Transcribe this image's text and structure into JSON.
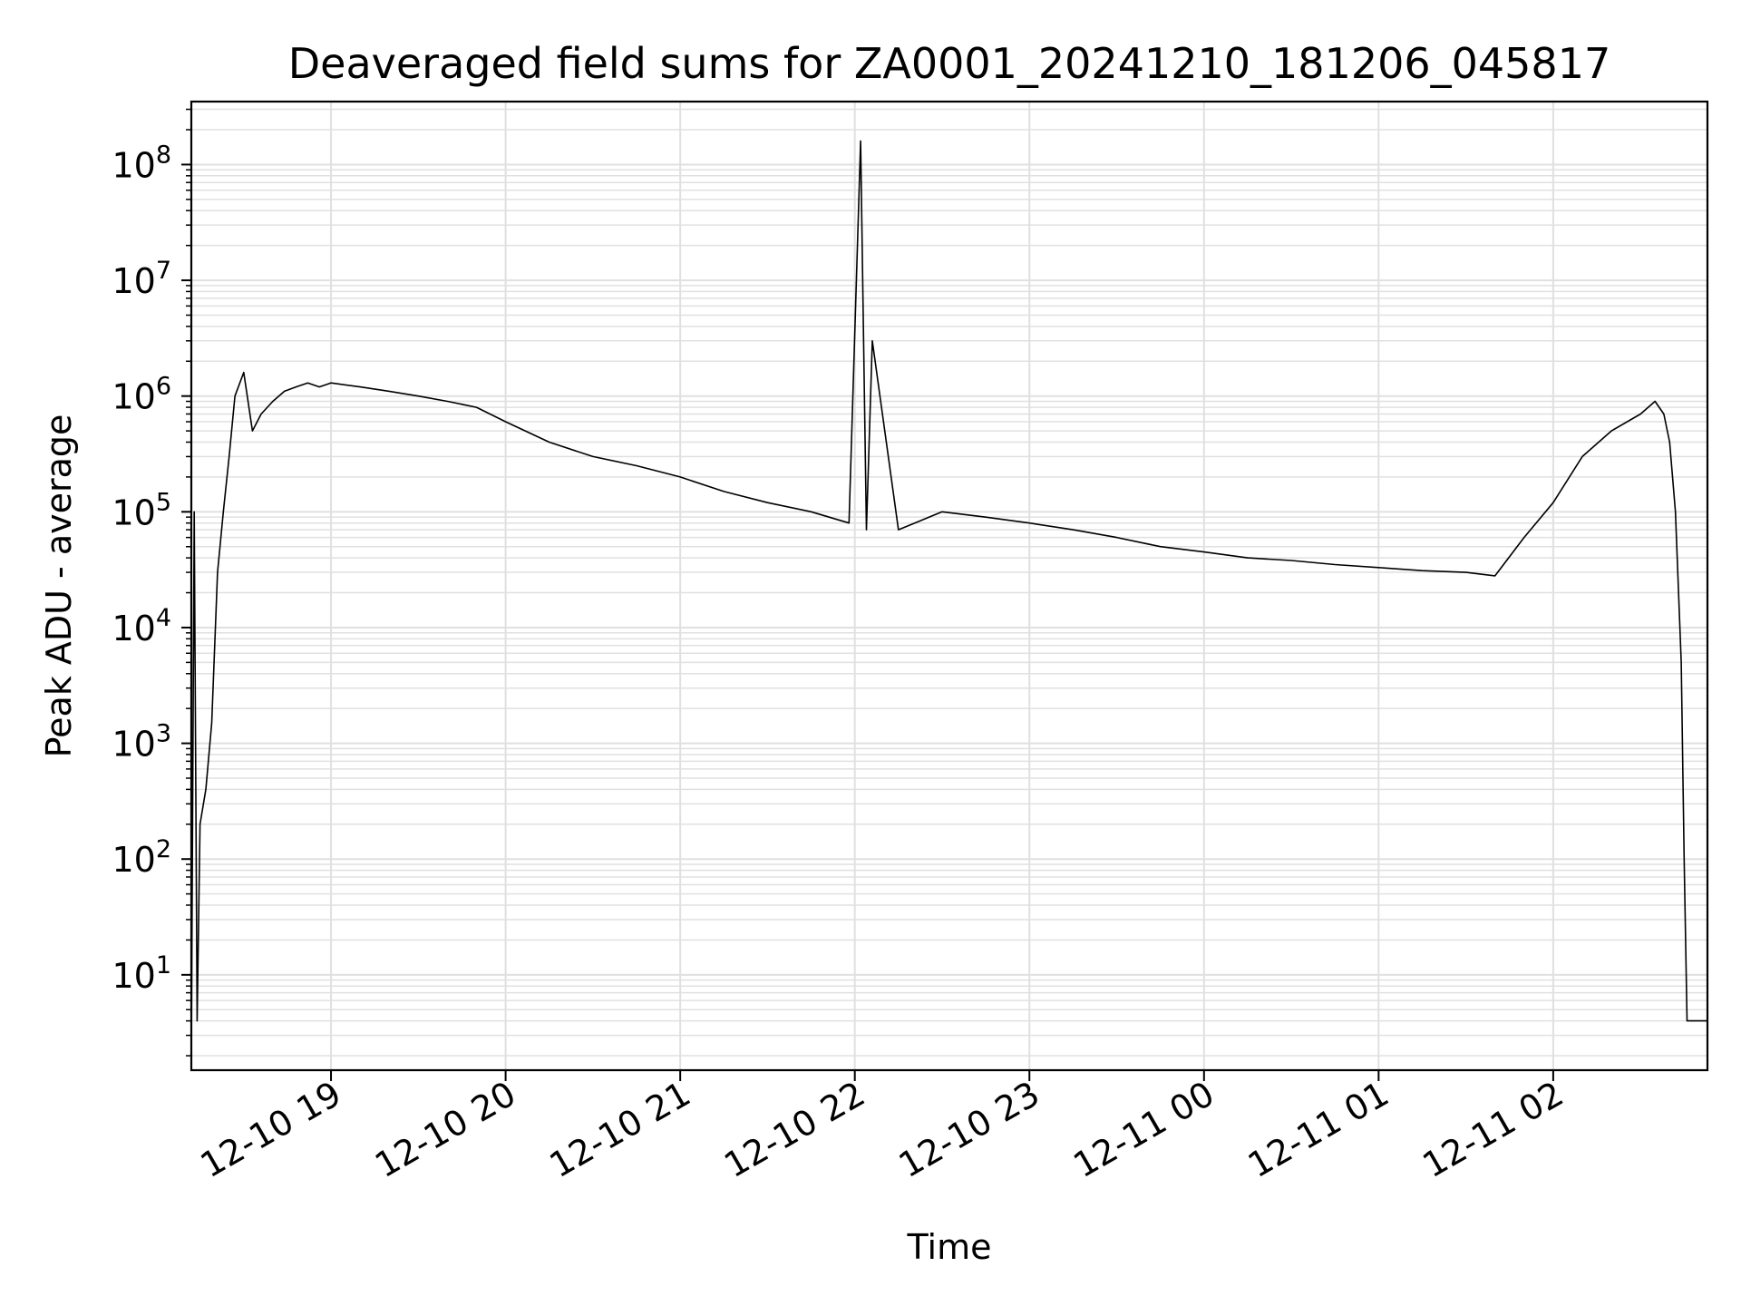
{
  "chart_data": {
    "type": "line",
    "title": "Deaveraged field sums for ZA0001_20241210_181206_045817",
    "xlabel": "Time",
    "ylabel": "Peak ADU - average",
    "y_scale": "log",
    "ylim": [
      1.5,
      350000000.0
    ],
    "xlim": [
      "2024-12-10 18:12",
      "2024-12-11 02:53"
    ],
    "grid": true,
    "line_color": "#000000",
    "grid_color": "#e0e0e0",
    "x_ticks": [
      {
        "value": "2024-12-10 19:00",
        "label": "12-10 19"
      },
      {
        "value": "2024-12-10 20:00",
        "label": "12-10 20"
      },
      {
        "value": "2024-12-10 21:00",
        "label": "12-10 21"
      },
      {
        "value": "2024-12-10 22:00",
        "label": "12-10 22"
      },
      {
        "value": "2024-12-10 23:00",
        "label": "12-10 23"
      },
      {
        "value": "2024-12-11 00:00",
        "label": "12-11 00"
      },
      {
        "value": "2024-12-11 01:00",
        "label": "12-11 01"
      },
      {
        "value": "2024-12-11 02:00",
        "label": "12-11 02"
      }
    ],
    "y_ticks": [
      {
        "value": 10,
        "base": "10",
        "exp": "1"
      },
      {
        "value": 100,
        "base": "10",
        "exp": "2"
      },
      {
        "value": 1000,
        "base": "10",
        "exp": "3"
      },
      {
        "value": 10000,
        "base": "10",
        "exp": "4"
      },
      {
        "value": 100000,
        "base": "10",
        "exp": "5"
      },
      {
        "value": 1000000,
        "base": "10",
        "exp": "6"
      },
      {
        "value": 10000000,
        "base": "10",
        "exp": "7"
      },
      {
        "value": 100000000,
        "base": "10",
        "exp": "8"
      }
    ],
    "series": [
      {
        "x": [
          "2024-12-10 18:12",
          "2024-12-10 18:13",
          "2024-12-10 18:14",
          "2024-12-10 18:15",
          "2024-12-10 18:17",
          "2024-12-10 18:19",
          "2024-12-10 18:21",
          "2024-12-10 18:23",
          "2024-12-10 18:25",
          "2024-12-10 18:27",
          "2024-12-10 18:30",
          "2024-12-10 18:33",
          "2024-12-10 18:36",
          "2024-12-10 18:40",
          "2024-12-10 18:44",
          "2024-12-10 18:48",
          "2024-12-10 18:52",
          "2024-12-10 18:56",
          "2024-12-10 19:00",
          "2024-12-10 19:10",
          "2024-12-10 19:20",
          "2024-12-10 19:30",
          "2024-12-10 19:40",
          "2024-12-10 19:50",
          "2024-12-10 20:00",
          "2024-12-10 20:15",
          "2024-12-10 20:30",
          "2024-12-10 20:45",
          "2024-12-10 21:00",
          "2024-12-10 21:15",
          "2024-12-10 21:30",
          "2024-12-10 21:45",
          "2024-12-10 21:58",
          "2024-12-10 22:02",
          "2024-12-10 22:04",
          "2024-12-10 22:06",
          "2024-12-10 22:15",
          "2024-12-10 22:30",
          "2024-12-10 22:45",
          "2024-12-10 23:00",
          "2024-12-10 23:15",
          "2024-12-10 23:30",
          "2024-12-10 23:45",
          "2024-12-11 00:00",
          "2024-12-11 00:15",
          "2024-12-11 00:30",
          "2024-12-11 00:45",
          "2024-12-11 01:00",
          "2024-12-11 01:15",
          "2024-12-11 01:30",
          "2024-12-11 01:40",
          "2024-12-11 01:50",
          "2024-12-11 02:00",
          "2024-12-11 02:10",
          "2024-12-11 02:20",
          "2024-12-11 02:30",
          "2024-12-11 02:35",
          "2024-12-11 02:38",
          "2024-12-11 02:40",
          "2024-12-11 02:42",
          "2024-12-11 02:44",
          "2024-12-11 02:45",
          "2024-12-11 02:46",
          "2024-12-11 02:53"
        ],
        "y": [
          2,
          100000,
          4,
          200,
          400,
          1500,
          30000,
          100000,
          300000,
          1000000,
          1600000,
          500000,
          700000,
          900000,
          1100000,
          1200000,
          1300000,
          1200000,
          1300000,
          1200000,
          1100000,
          1000000,
          900000,
          800000,
          600000,
          400000,
          300000,
          250000,
          200000,
          150000,
          120000,
          100000,
          80000,
          160000000,
          70000,
          3000000,
          70000,
          100000,
          90000,
          80000,
          70000,
          60000,
          50000,
          45000,
          40000,
          38000,
          35000,
          33000,
          31000,
          30000,
          28000,
          60000,
          120000,
          300000,
          500000,
          700000,
          900000,
          700000,
          400000,
          100000,
          5000,
          100,
          4,
          4
        ]
      }
    ]
  }
}
